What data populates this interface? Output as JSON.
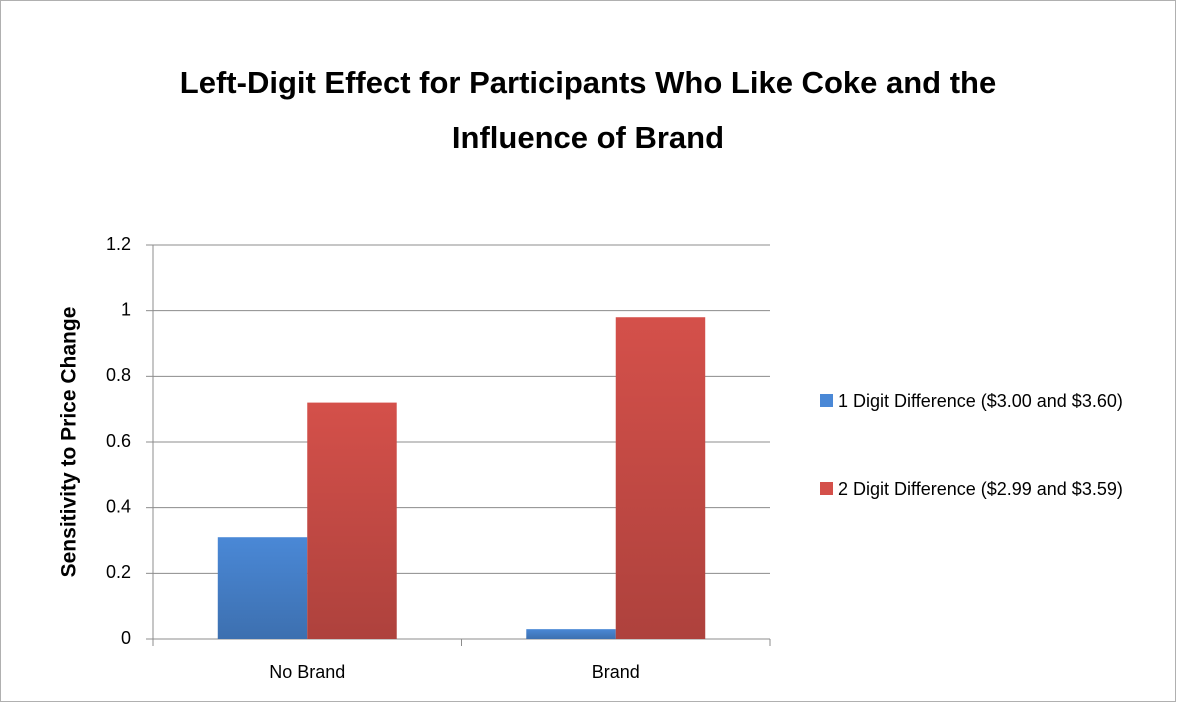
{
  "chart_data": {
    "type": "bar",
    "title": "Left-Digit Effect for Participants Who Like Coke and the Influence of Brand",
    "y_label": "Sensitivity to Price Change",
    "categories": [
      "No Brand",
      "Brand"
    ],
    "series": [
      {
        "name": "1 Digit Difference ($3.00 and $3.60)",
        "color": "#4a88d6",
        "values": [
          0.31,
          0.03
        ]
      },
      {
        "name": "2 Digit Difference ($2.99 and $3.59)",
        "color": "#d4504a",
        "values": [
          0.72,
          0.98
        ]
      }
    ],
    "ylim": [
      0,
      1.2
    ],
    "yticks": [
      0,
      0.2,
      0.4,
      0.6,
      0.8,
      1,
      1.2
    ],
    "grid": true,
    "legend": "right"
  }
}
